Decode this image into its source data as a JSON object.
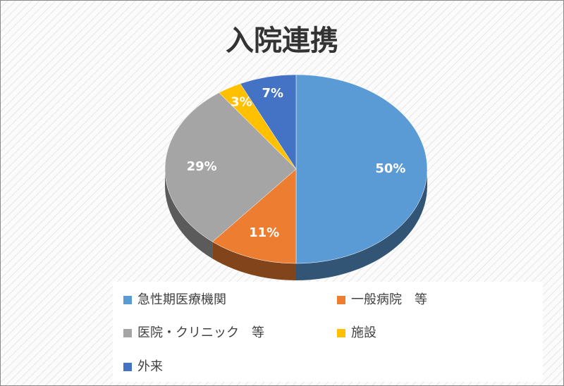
{
  "chart_data": {
    "type": "pie",
    "title": "入院連携",
    "categories": [
      "急性期医療機関",
      "一般病院　等",
      "医院・クリニック　等",
      "施設",
      "外来"
    ],
    "values": [
      50,
      11,
      29,
      3,
      7
    ],
    "value_labels": [
      "50%",
      "11%",
      "29%",
      "3%",
      "7%"
    ],
    "colors": [
      "#5b9bd5",
      "#ed7d31",
      "#a5a5a5",
      "#ffc000",
      "#4472c4"
    ],
    "legend": "bottom"
  }
}
